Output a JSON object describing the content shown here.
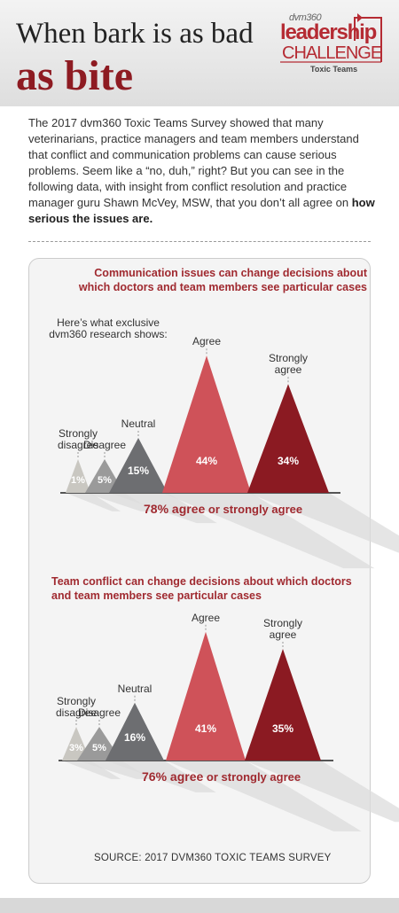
{
  "header": {
    "title_line1": "When bark is as bad",
    "title_line2": "as bite"
  },
  "logo": {
    "brand": "dvm360",
    "line1": "leadership",
    "line2": "CHALLENGE",
    "line3": "Toxic Teams"
  },
  "intro": {
    "text": "The 2017 dvm360 Toxic Teams Survey showed that many veterinarians, practice managers and team members understand that conflict and communication problems can cause serious problems. Seem like a “no, duh,” right? But you can see in the following data, with insight from conflict resolution and practice manager guru Shawn McVey, MSW, that you don’t all agree on ",
    "bold": "how serious the issues are."
  },
  "subtitle": "Here’s what exclusive dvm360 research shows:",
  "source": "SOURCE: 2017 DVM360 TOXIC TEAMS SURVEY",
  "colors": {
    "strongly_disagree": "#c9c7c1",
    "disagree": "#9a9a9a",
    "neutral": "#6d6e71",
    "agree": "#cf5259",
    "strongly_agree": "#8b1a22",
    "accent": "#a02a30"
  },
  "chart_data": [
    {
      "type": "bar",
      "title": "Communication issues can change decisions about which doctors and team members see particular cases",
      "categories": [
        "Strongly disagree",
        "Disagree",
        "Neutral",
        "Agree",
        "Strongly agree"
      ],
      "values": [
        1,
        5,
        15,
        44,
        34
      ],
      "value_labels": [
        "1%",
        "5%",
        "15%",
        "44%",
        "34%"
      ],
      "summary_pct": "78% agree",
      "summary_rest": " or strongly agree"
    },
    {
      "type": "bar",
      "title": "Team conflict can change decisions about which doctors and team members see particular cases",
      "categories": [
        "Strongly disagree",
        "Disagree",
        "Neutral",
        "Agree",
        "Strongly agree"
      ],
      "values": [
        3,
        5,
        16,
        41,
        35
      ],
      "value_labels": [
        "3%",
        "5%",
        "16%",
        "41%",
        "35%"
      ],
      "summary_pct": "76% agree",
      "summary_rest": " or strongly agree"
    }
  ]
}
